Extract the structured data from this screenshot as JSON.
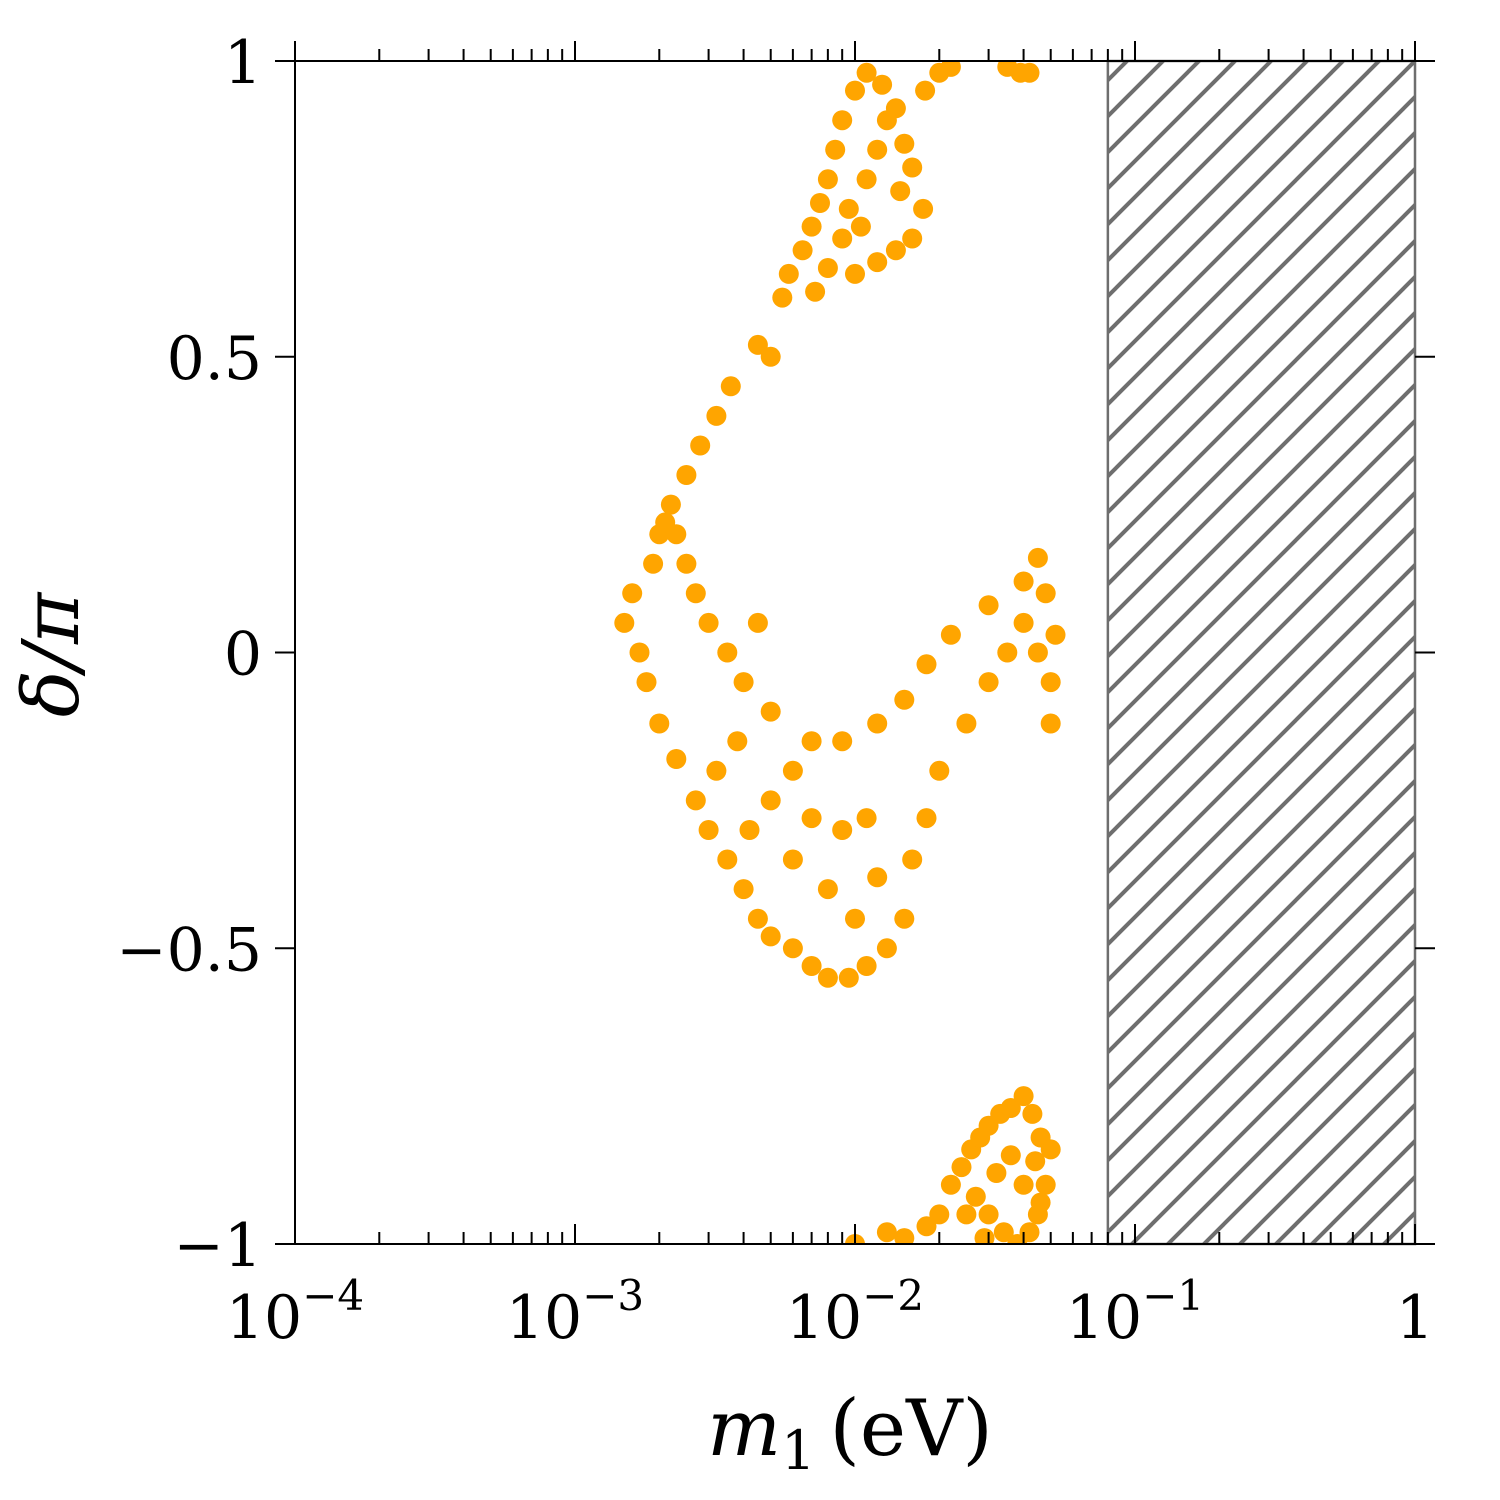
{
  "chart_data": {
    "type": "scatter",
    "x_scale": "log",
    "xlim": [
      0.0001,
      1
    ],
    "ylim": [
      -1,
      1
    ],
    "x_ticks": [
      {
        "value": 0.0001,
        "base": "10",
        "exp": "−4"
      },
      {
        "value": 0.001,
        "base": "10",
        "exp": "−3"
      },
      {
        "value": 0.01,
        "base": "10",
        "exp": "−2"
      },
      {
        "value": 0.1,
        "base": "10",
        "exp": "−1"
      },
      {
        "value": 1,
        "base": "1",
        "exp": ""
      }
    ],
    "y_ticks": [
      {
        "value": 1,
        "label": "1"
      },
      {
        "value": 0.5,
        "label": "0.5"
      },
      {
        "value": 0,
        "label": "0"
      },
      {
        "value": -0.5,
        "label": "−0.5"
      },
      {
        "value": -1,
        "label": "−1"
      }
    ],
    "xlabel": {
      "symbol": "m",
      "sub": "1",
      "unit": "(eV)"
    },
    "ylabel": "δ/π",
    "point_color": "#ffa500",
    "hatch_color": "#6e6e6e",
    "excluded_region": {
      "x_min": 0.08,
      "x_max": 1,
      "pattern": "diagonal-hatch"
    },
    "grid": false,
    "legend": "none",
    "clusters": [
      {
        "name": "main",
        "points": [
          [
            0.0015,
            0.05
          ],
          [
            0.0017,
            0.0
          ],
          [
            0.0018,
            -0.05
          ],
          [
            0.0016,
            0.1
          ],
          [
            0.0019,
            0.15
          ],
          [
            0.002,
            0.2
          ],
          [
            0.0022,
            0.25
          ],
          [
            0.0025,
            0.3
          ],
          [
            0.0028,
            0.35
          ],
          [
            0.0032,
            0.4
          ],
          [
            0.0036,
            0.45
          ],
          [
            0.0045,
            0.52
          ],
          [
            0.005,
            0.5
          ],
          [
            0.002,
            -0.12
          ],
          [
            0.0023,
            -0.18
          ],
          [
            0.0027,
            -0.25
          ],
          [
            0.003,
            -0.3
          ],
          [
            0.0035,
            -0.35
          ],
          [
            0.004,
            -0.4
          ],
          [
            0.0045,
            -0.45
          ],
          [
            0.005,
            -0.48
          ],
          [
            0.006,
            -0.5
          ],
          [
            0.007,
            -0.53
          ],
          [
            0.008,
            -0.55
          ],
          [
            0.0095,
            -0.55
          ],
          [
            0.011,
            -0.53
          ],
          [
            0.013,
            -0.5
          ],
          [
            0.015,
            -0.45
          ],
          [
            0.016,
            -0.35
          ],
          [
            0.018,
            -0.28
          ],
          [
            0.02,
            -0.2
          ],
          [
            0.025,
            -0.12
          ],
          [
            0.03,
            -0.05
          ],
          [
            0.035,
            0.0
          ],
          [
            0.04,
            0.05
          ],
          [
            0.045,
            0.0
          ],
          [
            0.05,
            -0.05
          ],
          [
            0.052,
            0.03
          ],
          [
            0.048,
            0.1
          ],
          [
            0.04,
            0.12
          ],
          [
            0.03,
            0.08
          ],
          [
            0.022,
            0.03
          ],
          [
            0.018,
            -0.02
          ],
          [
            0.015,
            -0.08
          ],
          [
            0.012,
            -0.12
          ],
          [
            0.009,
            -0.15
          ],
          [
            0.007,
            -0.15
          ],
          [
            0.006,
            -0.2
          ],
          [
            0.005,
            -0.1
          ],
          [
            0.004,
            -0.05
          ],
          [
            0.0035,
            0.0
          ],
          [
            0.003,
            0.05
          ],
          [
            0.0027,
            0.1
          ],
          [
            0.0025,
            0.15
          ],
          [
            0.0023,
            0.2
          ],
          [
            0.0021,
            0.22
          ],
          [
            0.0042,
            -0.3
          ],
          [
            0.006,
            -0.35
          ],
          [
            0.008,
            -0.4
          ],
          [
            0.01,
            -0.45
          ],
          [
            0.012,
            -0.38
          ],
          [
            0.011,
            -0.28
          ],
          [
            0.009,
            -0.3
          ],
          [
            0.007,
            -0.28
          ],
          [
            0.005,
            -0.25
          ],
          [
            0.0045,
            0.05
          ],
          [
            0.0038,
            -0.15
          ],
          [
            0.0032,
            -0.2
          ],
          [
            0.05,
            -0.12
          ],
          [
            0.045,
            0.16
          ]
        ]
      },
      {
        "name": "upper",
        "points": [
          [
            0.0055,
            0.6
          ],
          [
            0.0058,
            0.64
          ],
          [
            0.0065,
            0.68
          ],
          [
            0.007,
            0.72
          ],
          [
            0.0075,
            0.76
          ],
          [
            0.008,
            0.8
          ],
          [
            0.0085,
            0.85
          ],
          [
            0.009,
            0.9
          ],
          [
            0.01,
            0.95
          ],
          [
            0.011,
            0.98
          ],
          [
            0.0125,
            0.96
          ],
          [
            0.014,
            0.92
          ],
          [
            0.015,
            0.86
          ],
          [
            0.016,
            0.82
          ],
          [
            0.0175,
            0.75
          ],
          [
            0.016,
            0.7
          ],
          [
            0.014,
            0.68
          ],
          [
            0.012,
            0.66
          ],
          [
            0.01,
            0.64
          ],
          [
            0.009,
            0.7
          ],
          [
            0.0095,
            0.75
          ],
          [
            0.011,
            0.8
          ],
          [
            0.012,
            0.85
          ],
          [
            0.013,
            0.9
          ],
          [
            0.0145,
            0.78
          ],
          [
            0.0105,
            0.72
          ],
          [
            0.008,
            0.65
          ],
          [
            0.0178,
            0.95
          ],
          [
            0.02,
            0.98
          ],
          [
            0.022,
            0.99
          ],
          [
            0.035,
            0.99
          ],
          [
            0.039,
            0.98
          ],
          [
            0.042,
            0.98
          ],
          [
            0.0072,
            0.61
          ]
        ]
      },
      {
        "name": "lower",
        "points": [
          [
            0.01,
            -1.0
          ],
          [
            0.013,
            -0.98
          ],
          [
            0.015,
            -0.99
          ],
          [
            0.018,
            -0.97
          ],
          [
            0.02,
            -0.95
          ],
          [
            0.022,
            -0.9
          ],
          [
            0.024,
            -0.87
          ],
          [
            0.026,
            -0.84
          ],
          [
            0.028,
            -0.82
          ],
          [
            0.03,
            -0.8
          ],
          [
            0.033,
            -0.78
          ],
          [
            0.036,
            -0.77
          ],
          [
            0.04,
            -0.75
          ],
          [
            0.043,
            -0.78
          ],
          [
            0.046,
            -0.82
          ],
          [
            0.05,
            -0.84
          ],
          [
            0.048,
            -0.9
          ],
          [
            0.045,
            -0.95
          ],
          [
            0.042,
            -0.98
          ],
          [
            0.038,
            -1.0
          ],
          [
            0.034,
            -0.98
          ],
          [
            0.03,
            -0.95
          ],
          [
            0.027,
            -0.92
          ],
          [
            0.025,
            -0.95
          ],
          [
            0.032,
            -0.88
          ],
          [
            0.036,
            -0.85
          ],
          [
            0.04,
            -0.9
          ],
          [
            0.044,
            -0.86
          ],
          [
            0.029,
            -0.99
          ],
          [
            0.046,
            -0.93
          ]
        ]
      }
    ]
  }
}
